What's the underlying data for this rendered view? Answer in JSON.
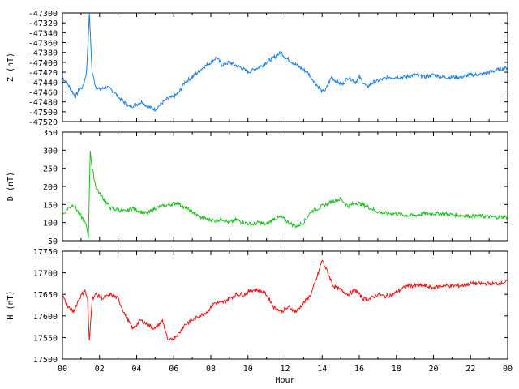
{
  "chart_data": [
    {
      "type": "line",
      "ylabel": "Z (nT)",
      "ylim": [
        -47520,
        -47300
      ],
      "yticks": [
        -47300,
        -47320,
        -47340,
        -47360,
        -47380,
        -47400,
        -47420,
        -47440,
        -47460,
        -47480,
        -47500,
        -47520
      ],
      "xlim": [
        0,
        24
      ],
      "color": "#1a7fe0",
      "series": [
        {
          "x": [
            0,
            0.3,
            0.7,
            0.9,
            1.1,
            1.3,
            1.45,
            1.6,
            1.8,
            2.0,
            2.4,
            2.8,
            3.0,
            3.3,
            3.6,
            4.0,
            4.3,
            4.6,
            5.0,
            5.3,
            5.6,
            6.0,
            6.3,
            6.6,
            7.0,
            7.3,
            7.6,
            8.0,
            8.3,
            8.6,
            9.0,
            9.3,
            9.6,
            10.0,
            10.3,
            10.6,
            11.0,
            11.4,
            11.8,
            12.0,
            12.4,
            12.8,
            13.2,
            13.6,
            14.0,
            14.2,
            14.5,
            14.8,
            15.1,
            15.4,
            15.8,
            16.0,
            16.4,
            16.8,
            17.2,
            17.6,
            18.0,
            18.5,
            19.0,
            19.5,
            20.0,
            20.5,
            21.0,
            21.5,
            22.0,
            22.5,
            23.0,
            23.5,
            24.0
          ],
          "values": [
            -47430,
            -47445,
            -47470,
            -47455,
            -47450,
            -47420,
            -47300,
            -47420,
            -47450,
            -47455,
            -47450,
            -47460,
            -47470,
            -47480,
            -47490,
            -47485,
            -47480,
            -47490,
            -47495,
            -47485,
            -47475,
            -47470,
            -47460,
            -47440,
            -47430,
            -47420,
            -47410,
            -47400,
            -47390,
            -47405,
            -47400,
            -47405,
            -47410,
            -47420,
            -47415,
            -47410,
            -47400,
            -47390,
            -47380,
            -47390,
            -47400,
            -47410,
            -47420,
            -47440,
            -47460,
            -47455,
            -47430,
            -47440,
            -47445,
            -47430,
            -47440,
            -47430,
            -47450,
            -47440,
            -47435,
            -47430,
            -47430,
            -47430,
            -47425,
            -47430,
            -47425,
            -47430,
            -47430,
            -47430,
            -47425,
            -47425,
            -47420,
            -47415,
            -47410
          ]
        }
      ]
    },
    {
      "type": "line",
      "ylabel": "D (nT)",
      "ylim": [
        50,
        350
      ],
      "yticks": [
        350,
        300,
        250,
        200,
        150,
        100,
        50
      ],
      "xlim": [
        0,
        24
      ],
      "color": "#22bb22",
      "series": [
        {
          "x": [
            0,
            0.3,
            0.6,
            0.9,
            1.1,
            1.3,
            1.4,
            1.5,
            1.6,
            1.8,
            2.0,
            2.3,
            2.6,
            3.0,
            3.4,
            3.8,
            4.2,
            4.6,
            5.0,
            5.4,
            5.8,
            6.2,
            6.6,
            7.0,
            7.4,
            7.8,
            8.2,
            8.6,
            9.0,
            9.4,
            9.8,
            10.2,
            10.6,
            11.0,
            11.4,
            11.8,
            12.2,
            12.6,
            13.0,
            13.4,
            13.8,
            14.2,
            14.6,
            15.0,
            15.4,
            15.8,
            16.2,
            16.6,
            17.0,
            17.5,
            18.0,
            18.5,
            19.0,
            19.5,
            20.0,
            20.5,
            21.0,
            21.5,
            22.0,
            22.5,
            23.0,
            23.5,
            24.0
          ],
          "values": [
            120,
            140,
            150,
            125,
            110,
            90,
            60,
            300,
            250,
            200,
            180,
            160,
            140,
            135,
            130,
            140,
            130,
            125,
            140,
            145,
            150,
            155,
            140,
            130,
            115,
            110,
            105,
            110,
            100,
            108,
            100,
            95,
            100,
            95,
            110,
            115,
            100,
            90,
            100,
            130,
            140,
            150,
            160,
            165,
            145,
            155,
            150,
            140,
            130,
            125,
            125,
            120,
            120,
            125,
            125,
            125,
            122,
            120,
            118,
            118,
            116,
            115,
            116
          ]
        }
      ]
    },
    {
      "type": "line",
      "ylabel": "H (nT)",
      "ylim": [
        17500,
        17750
      ],
      "yticks": [
        17750,
        17700,
        17650,
        17600,
        17550,
        17500
      ],
      "xlim": [
        0,
        24
      ],
      "color": "#ee1111",
      "series": [
        {
          "x": [
            0,
            0.3,
            0.6,
            0.9,
            1.2,
            1.35,
            1.45,
            1.6,
            1.8,
            2.2,
            2.6,
            3.0,
            3.4,
            3.8,
            4.0,
            4.2,
            4.6,
            5.0,
            5.4,
            5.7,
            6.0,
            6.3,
            6.6,
            7.0,
            7.4,
            7.8,
            8.2,
            8.6,
            9.0,
            9.4,
            9.8,
            10.2,
            10.6,
            11.0,
            11.4,
            11.8,
            12.2,
            12.6,
            13.0,
            13.4,
            13.8,
            14.0,
            14.3,
            14.6,
            15.0,
            15.4,
            15.8,
            16.2,
            16.6,
            17.0,
            17.4,
            17.8,
            18.2,
            18.6,
            19.0,
            19.5,
            20.0,
            20.5,
            21.0,
            21.5,
            22.0,
            22.5,
            23.0,
            23.5,
            24.0
          ],
          "values": [
            17650,
            17620,
            17610,
            17640,
            17660,
            17640,
            17540,
            17640,
            17650,
            17640,
            17650,
            17640,
            17600,
            17570,
            17580,
            17590,
            17580,
            17570,
            17590,
            17540,
            17550,
            17560,
            17580,
            17590,
            17600,
            17610,
            17630,
            17630,
            17640,
            17650,
            17650,
            17660,
            17660,
            17650,
            17620,
            17610,
            17620,
            17610,
            17630,
            17650,
            17700,
            17730,
            17700,
            17670,
            17660,
            17650,
            17660,
            17640,
            17640,
            17650,
            17645,
            17650,
            17660,
            17670,
            17670,
            17670,
            17665,
            17670,
            17670,
            17670,
            17675,
            17675,
            17675,
            17675,
            17680
          ]
        }
      ]
    }
  ],
  "xaxis": {
    "label": "Hour",
    "ticks": [
      "00",
      "02",
      "04",
      "06",
      "08",
      "10",
      "12",
      "14",
      "16",
      "18",
      "20",
      "22",
      "00"
    ]
  }
}
